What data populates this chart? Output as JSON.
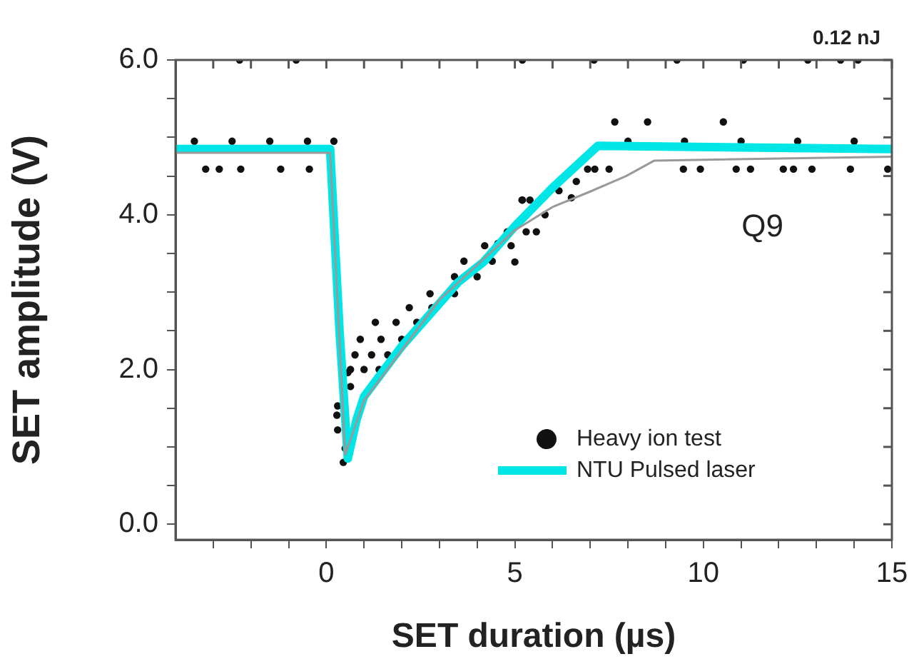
{
  "chart_data": {
    "type": "line",
    "xlabel": "SET duration (µs)",
    "ylabel": "SET amplitude (V)",
    "annotations": [
      "0.12 nJ",
      "Q9"
    ],
    "xlim": [
      -4,
      15
    ],
    "ylim": [
      -0.2,
      6
    ],
    "xticks": [
      {
        "value": -3,
        "label": null
      },
      {
        "value": -2,
        "label": null
      },
      {
        "value": -1,
        "label": null
      },
      0,
      {
        "value": 1,
        "label": null
      },
      {
        "value": 2,
        "label": null
      },
      {
        "value": 3,
        "label": null
      },
      {
        "value": 4,
        "label": null
      },
      5,
      {
        "value": 6,
        "label": null
      },
      {
        "value": 7,
        "label": null
      },
      {
        "value": 8,
        "label": null
      },
      {
        "value": 9,
        "label": null
      },
      10,
      {
        "value": 11,
        "label": null
      },
      {
        "value": 12,
        "label": null
      },
      {
        "value": 13,
        "label": null
      },
      {
        "value": 14,
        "label": null
      },
      15
    ],
    "yticks": [
      {
        "value": 0,
        "label": "0.0"
      },
      {
        "value": 0.5,
        "label": null
      },
      {
        "value": 1,
        "label": null
      },
      {
        "value": 1.5,
        "label": null
      },
      {
        "value": 2,
        "label": "2.0"
      },
      {
        "value": 2.5,
        "label": null
      },
      {
        "value": 3,
        "label": null
      },
      {
        "value": 3.5,
        "label": null
      },
      {
        "value": 4,
        "label": "4.0"
      },
      {
        "value": 4.5,
        "label": null
      },
      {
        "value": 5,
        "label": null
      },
      {
        "value": 5.5,
        "label": null
      },
      {
        "value": 6,
        "label": "6.0"
      }
    ],
    "grid": false,
    "legend": "bottom",
    "series": [
      {
        "color": "#999999",
        "x": [
          -4,
          0.1,
          0.5,
          1,
          3,
          5,
          6,
          7,
          7.95,
          8.7,
          15
        ],
        "values": [
          4.8,
          4.8,
          0.9,
          1.6,
          2.9,
          3.8,
          4.1,
          4.3,
          4.5,
          4.7,
          4.75
        ]
      },
      {
        "name": "NTU Pulsed laser",
        "color": "#00e5e5",
        "x": [
          -4,
          0.1,
          0.35,
          0.57,
          0.8,
          1.0,
          2.0,
          3.5,
          4.17,
          5,
          6,
          7.2,
          15
        ],
        "values": [
          4.85,
          4.85,
          2.5,
          0.85,
          1.35,
          1.65,
          2.3,
          3.13,
          3.39,
          3.85,
          4.35,
          4.89,
          4.85
        ]
      },
      {
        "type": "scatter",
        "name": "Heavy ion test",
        "color": "#111111",
        "marker": "circle",
        "x": [
          -3.2,
          -2.84,
          -2.27,
          -1.21,
          -0.45,
          -3.5,
          -2.5,
          -1.5,
          -0.5,
          0.2,
          0.45,
          0.5,
          0.3,
          0.28,
          0.3,
          0.64,
          0.57,
          0.64,
          1.0,
          1.4,
          0.76,
          1.2,
          1.63,
          0.9,
          1.45,
          2.0,
          1.3,
          1.85,
          2.4,
          2.2,
          2.8,
          2.75,
          3.4,
          3.4,
          4.0,
          3.65,
          4.4,
          4.2,
          4.9,
          4.8,
          5.3,
          5.2,
          5.4,
          4.55,
          5.0,
          5.57,
          5.19,
          5.8,
          6.17,
          6.5,
          6.63,
          6.93,
          7.65,
          8.52,
          10.53,
          7.12,
          7.5,
          9.47,
          9.92,
          10.87,
          11.25,
          12.12,
          12.39,
          12.88,
          13.9,
          14.89,
          8.0,
          9.5,
          11.0,
          12.5,
          14.0,
          -2.3,
          -0.8,
          5.2,
          7.1,
          9.3,
          11.06,
          12.77,
          13.64,
          14.1
        ],
        "values": [
          4.59,
          4.59,
          4.59,
          4.59,
          4.59,
          4.95,
          4.95,
          4.95,
          4.95,
          4.95,
          0.8,
          0.98,
          1.22,
          1.41,
          1.53,
          1.78,
          1.96,
          2.0,
          2.0,
          2.0,
          2.19,
          2.19,
          2.19,
          2.39,
          2.39,
          2.39,
          2.61,
          2.61,
          2.61,
          2.8,
          2.8,
          2.98,
          2.98,
          3.2,
          3.2,
          3.4,
          3.4,
          3.6,
          3.6,
          3.78,
          3.78,
          4.19,
          4.19,
          3.63,
          3.39,
          3.78,
          4.19,
          4.0,
          4.31,
          4.22,
          4.43,
          4.59,
          5.2,
          5.2,
          5.2,
          4.59,
          4.59,
          4.59,
          4.59,
          4.59,
          4.59,
          4.59,
          4.59,
          4.59,
          4.59,
          4.59,
          4.95,
          4.95,
          4.95,
          4.95,
          4.95,
          6.0,
          6.0,
          6.0,
          6.0,
          6.0,
          6.0,
          6.0,
          6.0,
          6.0
        ]
      }
    ]
  }
}
